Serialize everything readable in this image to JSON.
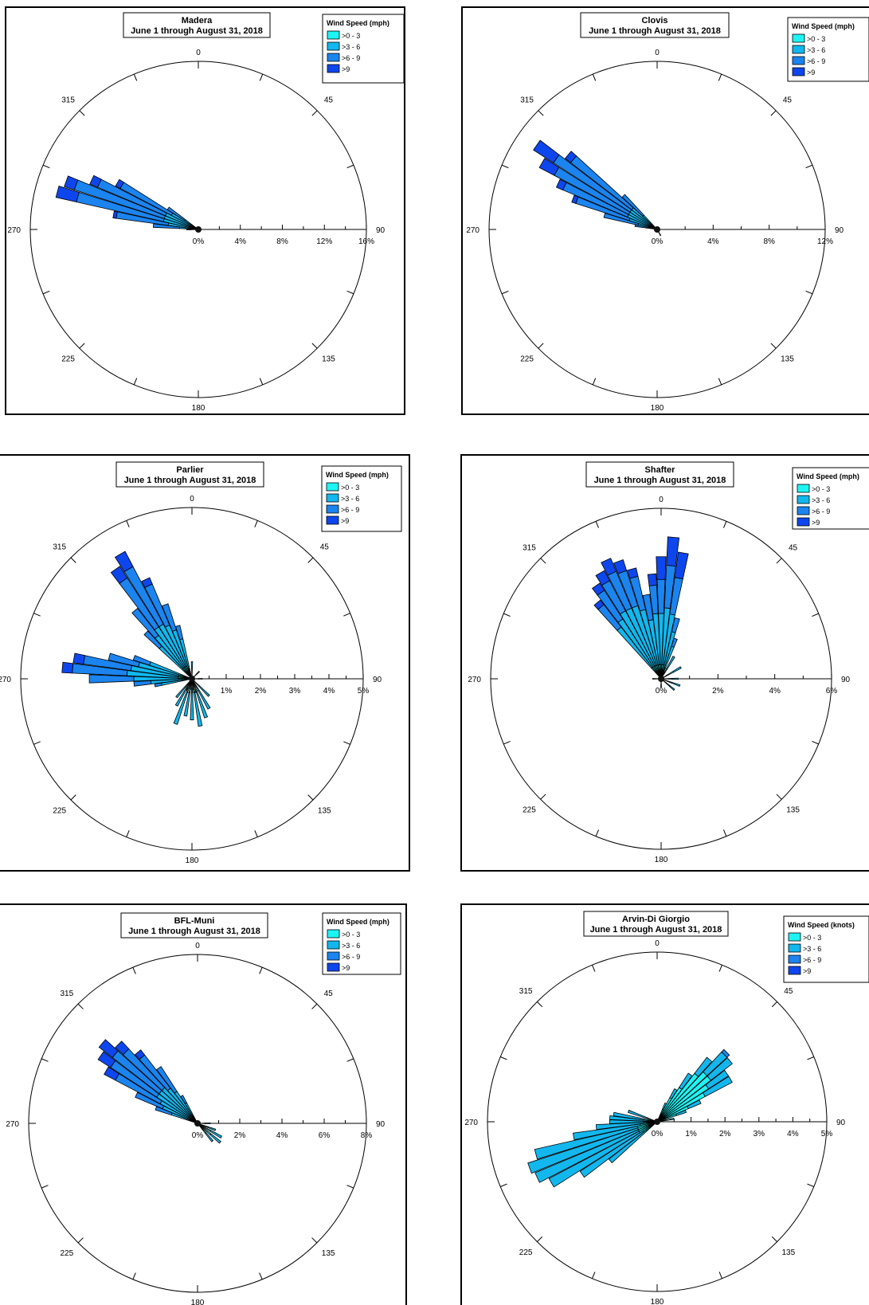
{
  "legend_swatch_colors": [
    "#1ef4f4",
    "#12b7ee",
    "#1b84ef",
    "#0e46ee"
  ],
  "compass_labels": [
    "0",
    "45",
    "90",
    "135",
    "180",
    "225",
    "270",
    "315"
  ],
  "chart_data": [
    {
      "type": "wind_rose",
      "title": "Madera",
      "subtitle": "June 1 through August 31, 2018",
      "legend_title": "Wind Speed (mph)",
      "speed_bins": [
        ">0 - 3",
        ">3 - 6",
        ">6 - 9",
        ">9"
      ],
      "radial_max": 16,
      "radial_ticks": [
        "0%",
        "4%",
        "8%",
        "12%",
        "16%"
      ],
      "petals": [
        {
          "direction": 285,
          "values": [
            0.4,
            3.0,
            8.5,
            2.0
          ]
        },
        {
          "direction": 290,
          "values": [
            0.4,
            3.0,
            9.0,
            1.0
          ]
        },
        {
          "direction": 295,
          "values": [
            0.4,
            3.0,
            7.0,
            0.8
          ]
        },
        {
          "direction": 300,
          "values": [
            0.4,
            2.5,
            5.5,
            0.5
          ]
        },
        {
          "direction": 280,
          "values": [
            0.4,
            2.5,
            5.0,
            0.3
          ]
        },
        {
          "direction": 275,
          "values": [
            0.3,
            1.5,
            2.5,
            0
          ]
        },
        {
          "direction": 305,
          "values": [
            0.3,
            1.2,
            2.0,
            0
          ]
        },
        {
          "direction": 270,
          "values": [
            0.3,
            0.5,
            0.3,
            0
          ]
        }
      ]
    },
    {
      "type": "wind_rose",
      "title": "Clovis",
      "subtitle": "June 1 through August 31, 2018",
      "legend_title": "Wind Speed (mph)",
      "speed_bins": [
        ">0 - 3",
        ">3 - 6",
        ">6 - 9",
        ">9"
      ],
      "radial_max": 12,
      "radial_ticks": [
        "0%",
        "4%",
        "8%",
        "12%"
      ],
      "petals": [
        {
          "direction": 305,
          "values": [
            0.3,
            2.0,
            6.5,
            1.7
          ]
        },
        {
          "direction": 300,
          "values": [
            0.3,
            2.0,
            6.0,
            1.2
          ]
        },
        {
          "direction": 310,
          "values": [
            0.3,
            2.0,
            5.5,
            0.5
          ]
        },
        {
          "direction": 295,
          "values": [
            0.3,
            2.0,
            5.0,
            0.5
          ]
        },
        {
          "direction": 290,
          "values": [
            0.3,
            1.8,
            4.0,
            0.3
          ]
        },
        {
          "direction": 285,
          "values": [
            0.2,
            1.2,
            2.5,
            0
          ]
        },
        {
          "direction": 315,
          "values": [
            0.2,
            1.2,
            2.0,
            0
          ]
        },
        {
          "direction": 280,
          "values": [
            0.2,
            0.6,
            0.8,
            0
          ]
        },
        {
          "direction": 150,
          "values": [
            0.3,
            0.2,
            0,
            0
          ]
        }
      ]
    },
    {
      "type": "wind_rose",
      "title": "Parlier",
      "subtitle": "June 1 through August 31, 2018",
      "legend_title": "Wind Speed (mph)",
      "speed_bins": [
        ">0 - 3",
        ">3 - 6",
        ">6 - 9",
        ">9"
      ],
      "radial_max": 5,
      "radial_ticks": [
        "0%",
        "1%",
        "2%",
        "3%",
        "4%",
        "5%"
      ],
      "petals": [
        {
          "direction": 330,
          "values": [
            0.4,
            1.4,
            1.9,
            0.5
          ]
        },
        {
          "direction": 325,
          "values": [
            0.4,
            1.4,
            1.7,
            0.4
          ]
        },
        {
          "direction": 335,
          "values": [
            0.4,
            1.3,
            1.3,
            0.2
          ]
        },
        {
          "direction": 340,
          "values": [
            0.3,
            1.2,
            0.8,
            0
          ]
        },
        {
          "direction": 345,
          "values": [
            0.3,
            0.9,
            0.4,
            0
          ]
        },
        {
          "direction": 320,
          "values": [
            0.4,
            1.2,
            1.0,
            0
          ]
        },
        {
          "direction": 315,
          "values": [
            0.3,
            1.0,
            0.6,
            0
          ]
        },
        {
          "direction": 275,
          "values": [
            0.4,
            1.5,
            1.6,
            0.3
          ]
        },
        {
          "direction": 280,
          "values": [
            0.4,
            1.4,
            1.4,
            0.3
          ]
        },
        {
          "direction": 270,
          "values": [
            0.4,
            1.3,
            1.3,
            0
          ]
        },
        {
          "direction": 285,
          "values": [
            0.4,
            1.2,
            0.9,
            0
          ]
        },
        {
          "direction": 290,
          "values": [
            0.3,
            1.0,
            0.5,
            0
          ]
        },
        {
          "direction": 265,
          "values": [
            0.3,
            0.9,
            0.5,
            0
          ]
        },
        {
          "direction": 260,
          "values": [
            0.3,
            0.6,
            0.2,
            0
          ]
        },
        {
          "direction": 170,
          "values": [
            0.4,
            1.0,
            0,
            0
          ]
        },
        {
          "direction": 160,
          "values": [
            0.4,
            0.8,
            0,
            0
          ]
        },
        {
          "direction": 150,
          "values": [
            0.4,
            0.6,
            0,
            0
          ]
        },
        {
          "direction": 180,
          "values": [
            0.4,
            0.8,
            0,
            0
          ]
        },
        {
          "direction": 200,
          "values": [
            0.4,
            1.0,
            0,
            0
          ]
        },
        {
          "direction": 190,
          "values": [
            0.4,
            0.7,
            0,
            0
          ]
        },
        {
          "direction": 210,
          "values": [
            0.3,
            0.6,
            0,
            0
          ]
        },
        {
          "direction": 220,
          "values": [
            0.3,
            0.4,
            0,
            0
          ]
        },
        {
          "direction": 135,
          "values": [
            0.3,
            0.4,
            0,
            0
          ]
        },
        {
          "direction": 0,
          "values": [
            0.3,
            0.2,
            0,
            0
          ]
        },
        {
          "direction": 45,
          "values": [
            0.2,
            0.1,
            0,
            0
          ]
        },
        {
          "direction": 90,
          "values": [
            0.2,
            0.1,
            0,
            0
          ]
        }
      ]
    },
    {
      "type": "wind_rose",
      "title": "Shafter",
      "subtitle": "June 1 through August 31, 2018",
      "legend_title": "Wind Speed (mph)",
      "speed_bins": [
        ">0 - 3",
        ">3 - 6",
        ">6 - 9",
        ">9"
      ],
      "radial_max": 6,
      "radial_ticks": [
        "0%",
        "2%",
        "4%",
        "6%"
      ],
      "petals": [
        {
          "direction": 5,
          "values": [
            0.5,
            2.0,
            1.5,
            1.0
          ]
        },
        {
          "direction": 10,
          "values": [
            0.5,
            1.8,
            1.3,
            0.9
          ]
        },
        {
          "direction": 0,
          "values": [
            0.5,
            1.8,
            1.2,
            0.8
          ]
        },
        {
          "direction": 355,
          "values": [
            0.5,
            1.8,
            1.0,
            0.4
          ]
        },
        {
          "direction": 345,
          "values": [
            0.5,
            2.0,
            1.2,
            0.3
          ]
        },
        {
          "direction": 340,
          "values": [
            0.5,
            2.2,
            1.3,
            0.4
          ]
        },
        {
          "direction": 335,
          "values": [
            0.5,
            2.2,
            1.4,
            0.5
          ]
        },
        {
          "direction": 330,
          "values": [
            0.5,
            2.2,
            1.2,
            0.4
          ]
        },
        {
          "direction": 325,
          "values": [
            0.5,
            2.0,
            1.2,
            0.3
          ]
        },
        {
          "direction": 320,
          "values": [
            0.5,
            1.8,
            1.0,
            0.2
          ]
        },
        {
          "direction": 350,
          "values": [
            0.5,
            1.6,
            0.9,
            0
          ]
        },
        {
          "direction": 15,
          "values": [
            0.5,
            1.2,
            0.5,
            0
          ]
        },
        {
          "direction": 20,
          "values": [
            0.4,
            0.8,
            0.3,
            0
          ]
        },
        {
          "direction": 30,
          "values": [
            0.4,
            0.5,
            0,
            0
          ]
        },
        {
          "direction": 60,
          "values": [
            0.5,
            0.3,
            0,
            0
          ]
        },
        {
          "direction": 90,
          "values": [
            0.4,
            0.2,
            0,
            0
          ]
        },
        {
          "direction": 110,
          "values": [
            0.4,
            0.3,
            0,
            0
          ]
        },
        {
          "direction": 130,
          "values": [
            0.4,
            0.2,
            0,
            0
          ]
        },
        {
          "direction": 180,
          "values": [
            0.2,
            0.1,
            0,
            0
          ]
        },
        {
          "direction": 270,
          "values": [
            0.2,
            0.1,
            0,
            0
          ]
        }
      ]
    },
    {
      "type": "wind_rose",
      "title": "BFL-Muni",
      "subtitle": "June 1 through August 31, 2018",
      "legend_title": "Wind Speed (mph)",
      "speed_bins": [
        ">0 - 3",
        ">3 - 6",
        ">6 - 9",
        ">9"
      ],
      "radial_max": 8,
      "radial_ticks": [
        "0%",
        "2%",
        "4%",
        "6%",
        "8%"
      ],
      "petals": [
        {
          "direction": 310,
          "values": [
            0.5,
            1.8,
            2.8,
            0.8
          ]
        },
        {
          "direction": 305,
          "values": [
            0.5,
            1.8,
            2.6,
            0.7
          ]
        },
        {
          "direction": 315,
          "values": [
            0.5,
            1.8,
            2.5,
            0.5
          ]
        },
        {
          "direction": 300,
          "values": [
            0.4,
            1.6,
            2.4,
            0.6
          ]
        },
        {
          "direction": 320,
          "values": [
            0.5,
            1.6,
            2.0,
            0.3
          ]
        },
        {
          "direction": 325,
          "values": [
            0.4,
            1.4,
            1.4,
            0
          ]
        },
        {
          "direction": 295,
          "values": [
            0.4,
            1.4,
            1.4,
            0
          ]
        },
        {
          "direction": 290,
          "values": [
            0.3,
            1.0,
            0.8,
            0
          ]
        },
        {
          "direction": 330,
          "values": [
            0.3,
            0.8,
            0.4,
            0
          ]
        },
        {
          "direction": 130,
          "values": [
            0.8,
            0.6,
            0,
            0
          ]
        },
        {
          "direction": 120,
          "values": [
            0.7,
            0.6,
            0,
            0
          ]
        },
        {
          "direction": 140,
          "values": [
            0.6,
            0.5,
            0,
            0
          ]
        },
        {
          "direction": 110,
          "values": [
            0.5,
            0.4,
            0,
            0
          ]
        },
        {
          "direction": 90,
          "values": [
            0.4,
            0.2,
            0,
            0
          ]
        }
      ]
    },
    {
      "type": "wind_rose",
      "title": "Arvin-Di Giorgio",
      "subtitle": "June 1 through August 31, 2018",
      "legend_title": "Wind Speed (knots)",
      "speed_bins": [
        ">0 - 3",
        ">3 - 6",
        ">6 - 9",
        ">9"
      ],
      "radial_max": 5,
      "radial_ticks": [
        "0%",
        "1%",
        "2%",
        "3%",
        "4%",
        "5%"
      ],
      "petals": [
        {
          "direction": 250,
          "values": [
            0.6,
            3.4,
            0,
            0
          ]
        },
        {
          "direction": 245,
          "values": [
            0.6,
            3.3,
            0,
            0
          ]
        },
        {
          "direction": 255,
          "values": [
            0.6,
            3.1,
            0,
            0
          ]
        },
        {
          "direction": 240,
          "values": [
            0.6,
            3.0,
            0,
            0
          ]
        },
        {
          "direction": 235,
          "values": [
            0.5,
            2.2,
            0,
            0
          ]
        },
        {
          "direction": 260,
          "values": [
            0.5,
            2.0,
            0,
            0
          ]
        },
        {
          "direction": 230,
          "values": [
            0.4,
            1.4,
            0,
            0
          ]
        },
        {
          "direction": 265,
          "values": [
            0.4,
            1.4,
            0,
            0
          ]
        },
        {
          "direction": 270,
          "values": [
            0.4,
            1.0,
            0,
            0
          ]
        },
        {
          "direction": 275,
          "values": [
            0.4,
            1.0,
            0,
            0
          ]
        },
        {
          "direction": 280,
          "values": [
            0.4,
            0.9,
            0,
            0
          ]
        },
        {
          "direction": 290,
          "values": [
            0.3,
            0.6,
            0,
            0
          ]
        },
        {
          "direction": 45,
          "values": [
            2.0,
            0.8,
            0.1,
            0
          ]
        },
        {
          "direction": 50,
          "values": [
            2.0,
            0.8,
            0,
            0
          ]
        },
        {
          "direction": 40,
          "values": [
            1.8,
            0.6,
            0,
            0
          ]
        },
        {
          "direction": 55,
          "values": [
            1.8,
            0.7,
            0,
            0
          ]
        },
        {
          "direction": 60,
          "values": [
            1.6,
            0.9,
            0,
            0
          ]
        },
        {
          "direction": 35,
          "values": [
            1.2,
            0.5,
            0,
            0
          ]
        },
        {
          "direction": 65,
          "values": [
            1.0,
            0.4,
            0,
            0
          ]
        },
        {
          "direction": 30,
          "values": [
            0.8,
            0.3,
            0,
            0
          ]
        },
        {
          "direction": 70,
          "values": [
            0.6,
            0.3,
            0,
            0
          ]
        },
        {
          "direction": 25,
          "values": [
            0.4,
            0.2,
            0,
            0
          ]
        },
        {
          "direction": 80,
          "values": [
            0.4,
            0.1,
            0,
            0
          ]
        }
      ]
    }
  ]
}
